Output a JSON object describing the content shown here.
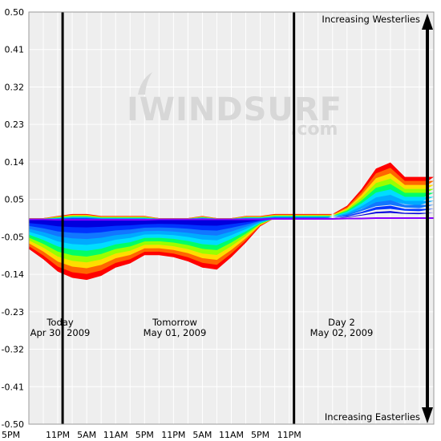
{
  "chart_data": {
    "type": "area",
    "y_ticks": [
      "0.50",
      "0.41",
      "0.32",
      "0.23",
      "0.14",
      "0.05",
      "-0.05",
      "-0.14",
      "-0.23",
      "-0.32",
      "-0.41",
      "-0.50"
    ],
    "x_ticks": [
      "5PM",
      "11PM",
      "5AM",
      "11AM",
      "5PM",
      "11PM",
      "5AM",
      "11AM",
      "5PM",
      "11PM"
    ],
    "ylim": [
      -0.5,
      0.5
    ],
    "grid": true,
    "x_hours": [
      0,
      3,
      6,
      9,
      12,
      15,
      18,
      21,
      24,
      27,
      30,
      33,
      36,
      39,
      42,
      45,
      48,
      51,
      54,
      57,
      60,
      63,
      66,
      69,
      72,
      75,
      78,
      81,
      84
    ],
    "day_dividers_hours": [
      7,
      55
    ],
    "days": [
      {
        "name": "Today",
        "date": "Apr 30, 2009"
      },
      {
        "name": "Tomorrow",
        "date": "May 01, 2009"
      },
      {
        "name": "Day 2",
        "date": "May 02, 2009"
      }
    ],
    "arrow_labels": {
      "top": "Increasing Westerlies",
      "bottom": "Increasing Easterlies"
    },
    "watermark": {
      "main": "IWINDSURF",
      "sub": ".com"
    },
    "colors": {
      "band_colors": [
        "#ff0000",
        "#ff6600",
        "#ffdd00",
        "#99ff00",
        "#00ff66",
        "#00ddff",
        "#00aaff",
        "#1177ff",
        "#0033ff",
        "#0000dd"
      ],
      "center_line": "#8800ff",
      "divider": "#000000",
      "grid": "#ffffff",
      "plot_background": "#eeeeee"
    },
    "series": [
      {
        "values": [
          0.0,
          0.0,
          0.005,
          0.01,
          0.01,
          0.005,
          0.005,
          0.005,
          0.005,
          0.0,
          0.0,
          0.0,
          0.005,
          0.0,
          0.0,
          0.005,
          0.005,
          0.01,
          0.01,
          0.01,
          0.01,
          0.01,
          0.03,
          0.07,
          0.12,
          0.135,
          0.1,
          0.1,
          0.1
        ]
      },
      {
        "values": [
          -0.075,
          -0.1,
          -0.13,
          -0.145,
          -0.15,
          -0.14,
          -0.12,
          -0.11,
          -0.09,
          -0.09,
          -0.095,
          -0.105,
          -0.12,
          -0.125,
          -0.095,
          -0.06,
          -0.02,
          0.0,
          0.0,
          0.0,
          0.0,
          0.01,
          0.02,
          0.055,
          0.09,
          0.1,
          0.08,
          0.075,
          0.1
        ]
      }
    ],
    "center_line": [
      -0.003,
      -0.003,
      -0.004,
      -0.004,
      -0.004,
      -0.004,
      -0.004,
      -0.004,
      -0.004,
      -0.003,
      -0.003,
      -0.003,
      -0.003,
      -0.003,
      -0.003,
      -0.003,
      -0.003,
      -0.002,
      -0.002,
      -0.002,
      -0.002,
      -0.002,
      -0.001,
      -0.001,
      0.0,
      0.0,
      0.0,
      0.0,
      0.0
    ]
  }
}
